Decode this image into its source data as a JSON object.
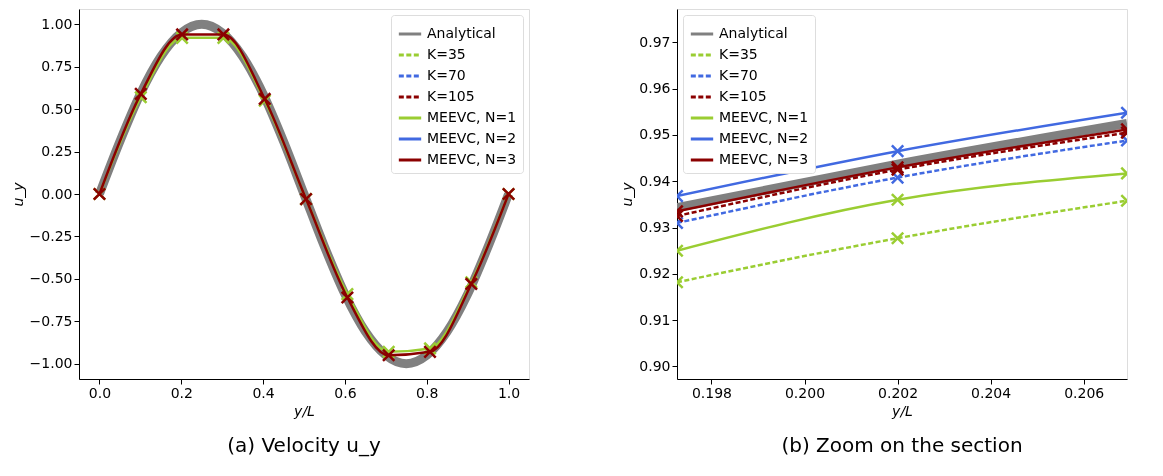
{
  "chart_data": [
    {
      "type": "line",
      "title": "(a) Velocity u_y",
      "xlabel": "y/L",
      "ylabel": "u_y",
      "legend": "top right",
      "grid": false,
      "xlim": [
        -0.05,
        1.05
      ],
      "ylim": [
        -1.09,
        1.09
      ],
      "xticks": [
        {
          "value": 0,
          "label": "0.0"
        },
        0.2,
        0.4,
        0.6,
        0.8,
        {
          "value": 1,
          "label": "1.0"
        }
      ],
      "yticks": [
        {
          "value": -1,
          "label": "−1.00"
        },
        {
          "value": -0.75,
          "label": "−0.75"
        },
        {
          "value": -0.5,
          "label": "−0.50"
        },
        {
          "value": -0.25,
          "label": "−0.25"
        },
        {
          "value": 0,
          "label": "0.00"
        },
        0.25,
        {
          "value": 0.5,
          "label": "0.50"
        },
        0.75,
        {
          "value": 1,
          "label": "1.00"
        }
      ],
      "series": [
        {
          "name": "Analytical",
          "color": "#808080",
          "marker": "none",
          "line_style": "solid",
          "x": [
            0,
            0.05,
            0.1,
            0.15,
            0.2,
            0.25,
            0.3,
            0.35,
            0.4,
            0.45,
            0.5,
            0.55,
            0.6,
            0.65,
            0.7,
            0.75,
            0.8,
            0.85,
            0.9,
            0.95,
            1.0
          ],
          "values": [
            0,
            0.31,
            0.59,
            0.81,
            0.95,
            1.0,
            0.95,
            0.81,
            0.59,
            0.31,
            0,
            -0.31,
            -0.59,
            -0.81,
            -0.95,
            -1.0,
            -0.95,
            -0.81,
            -0.59,
            -0.31,
            0
          ]
        },
        {
          "name": "K=35",
          "color": "#9acd32",
          "marker": "cross",
          "line_style": "dashed"
        },
        {
          "name": "K=70",
          "color": "#4169e1",
          "marker": "cross",
          "line_style": "dashed"
        },
        {
          "name": "K=105",
          "color": "#8b0000",
          "marker": "cross",
          "line_style": "dashed"
        },
        {
          "name": "MEEVC, N=1",
          "color": "#9acd32",
          "marker": "cross",
          "line_style": "solid",
          "x": [
            0,
            0.101,
            0.202,
            0.303,
            0.404,
            0.505,
            0.606,
            0.707,
            0.808,
            0.909,
            1.0
          ],
          "values": [
            0,
            0.57,
            0.92,
            0.92,
            0.55,
            -0.03,
            -0.59,
            -0.93,
            -0.91,
            -0.52,
            0
          ]
        },
        {
          "name": "MEEVC, N=2",
          "color": "#4169e1",
          "marker": "cross",
          "line_style": "solid"
        },
        {
          "name": "MEEVC, N=3",
          "color": "#8b0000",
          "marker": "cross",
          "line_style": "solid",
          "x": [
            0,
            0.101,
            0.202,
            0.303,
            0.404,
            0.505,
            0.606,
            0.707,
            0.808,
            0.909,
            1.0
          ],
          "values": [
            0,
            0.59,
            0.94,
            0.94,
            0.56,
            -0.03,
            -0.61,
            -0.95,
            -0.93,
            -0.53,
            0
          ]
        }
      ]
    },
    {
      "type": "line",
      "title": "(b) Zoom on the section",
      "xlabel": "y/L",
      "ylabel": "u_y",
      "legend": "top left",
      "grid": false,
      "xlim": [
        0.19726,
        0.20693
      ],
      "ylim": [
        0.8973,
        0.9772
      ],
      "xticks": [
        0.198,
        {
          "value": 0.2,
          "label": "0.200"
        },
        0.202,
        0.204,
        0.206
      ],
      "yticks": [
        {
          "value": 0.9,
          "label": "0.90"
        },
        0.91,
        0.92,
        0.93,
        0.94,
        0.95,
        0.96,
        0.97
      ],
      "series": [
        {
          "name": "Analytical",
          "color": "#808080",
          "marker": "none",
          "line_style": "solid",
          "x": [
            0.19726,
            0.202,
            0.20693
          ],
          "values": [
            0.9343,
            0.9437,
            0.9525
          ]
        },
        {
          "name": "K=35",
          "color": "#9acd32",
          "marker": "cross",
          "line_style": "dashed",
          "x": [
            0.19726,
            0.202,
            0.20693
          ],
          "values": [
            0.9182,
            0.9277,
            0.9358
          ]
        },
        {
          "name": "K=70",
          "color": "#4169e1",
          "marker": "cross",
          "line_style": "dashed",
          "x": [
            0.19726,
            0.202,
            0.20693
          ],
          "values": [
            0.931,
            0.9408,
            0.9488
          ]
        },
        {
          "name": "K=105",
          "color": "#8b0000",
          "marker": "cross",
          "line_style": "dashed",
          "x": [
            0.19726,
            0.202,
            0.20693
          ],
          "values": [
            0.9325,
            0.9425,
            0.9505
          ]
        },
        {
          "name": "MEEVC, N=1",
          "color": "#9acd32",
          "marker": "cross",
          "line_style": "solid",
          "x": [
            0.19726,
            0.202,
            0.20693
          ],
          "values": [
            0.925,
            0.936,
            0.9417
          ]
        },
        {
          "name": "MEEVC, N=2",
          "color": "#4169e1",
          "marker": "cross",
          "line_style": "solid",
          "x": [
            0.19726,
            0.202,
            0.20693
          ],
          "values": [
            0.9368,
            0.9465,
            0.9548
          ]
        },
        {
          "name": "MEEVC, N=3",
          "color": "#8b0000",
          "marker": "cross",
          "line_style": "solid",
          "x": [
            0.19726,
            0.202,
            0.20693
          ],
          "values": [
            0.9335,
            0.943,
            0.9512
          ]
        }
      ]
    }
  ]
}
